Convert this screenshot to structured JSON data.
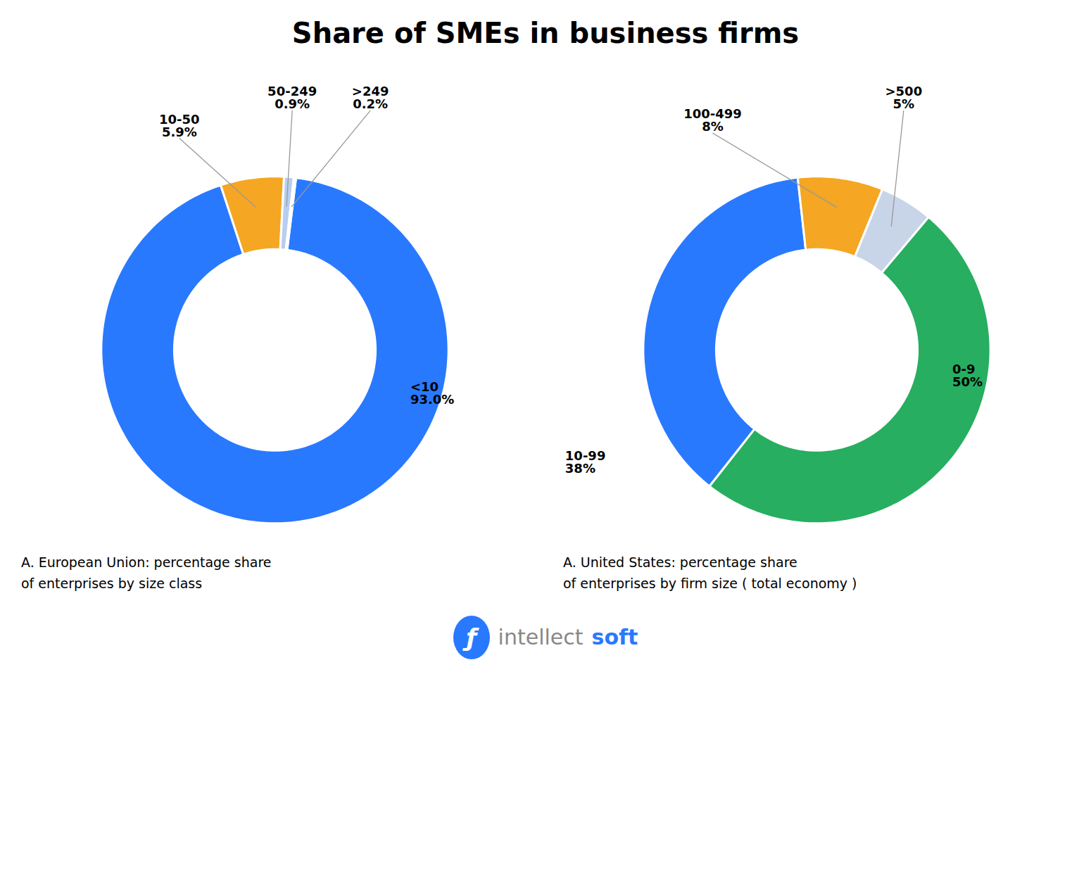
{
  "title": "Share of SMEs in business firms",
  "chart_data": [
    {
      "type": "pie",
      "subtitle": "A. European Union: percentage share\nof enterprises by size class",
      "categories": [
        "<10",
        "10-50",
        "50-249",
        ">249"
      ],
      "values": [
        93.0,
        5.9,
        0.9,
        0.2
      ],
      "value_labels": [
        "93.0%",
        "5.9%",
        "0.9%",
        "0.2%"
      ],
      "colors": [
        "#2979ff",
        "#f5a623",
        "#b8cef0",
        "#dce6f7"
      ],
      "data_labels": true
    },
    {
      "type": "pie",
      "subtitle": "A. United States: percentage share\nof enterprises by firm size ( total economy )",
      "categories": [
        "0-9",
        "10-99",
        "100-499",
        ">500"
      ],
      "values": [
        50,
        38,
        8,
        5
      ],
      "value_labels": [
        "50%",
        "38%",
        "8%",
        "5%"
      ],
      "colors": [
        "#27ae60",
        "#2979ff",
        "#f5a623",
        "#c8d4e8"
      ],
      "data_labels": true
    }
  ],
  "annotations": [
    {
      "text": "ƒ",
      "color": "#2979ff"
    },
    {
      "text": "intellect",
      "color": "#888888"
    },
    {
      "text": "soft",
      "color": "#2979ff"
    }
  ]
}
